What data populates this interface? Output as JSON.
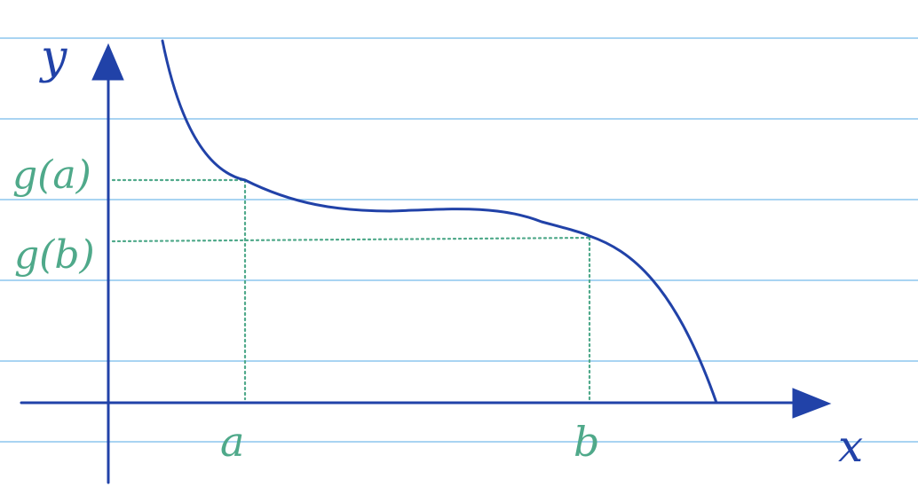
{
  "colors": {
    "paper": "#ffffff",
    "ruled_line": "#a9d4f2",
    "ink_blue": "#2142a8",
    "ink_green": "#4fa98a"
  },
  "labels": {
    "y_axis": "y",
    "x_axis": "x",
    "point_a": "a",
    "point_b": "b",
    "value_ga": "g(a)",
    "value_gb": "g(b)"
  },
  "diagram": {
    "curve": "decreasing function g",
    "guide_style": "dotted",
    "paper": "ruled notebook"
  }
}
